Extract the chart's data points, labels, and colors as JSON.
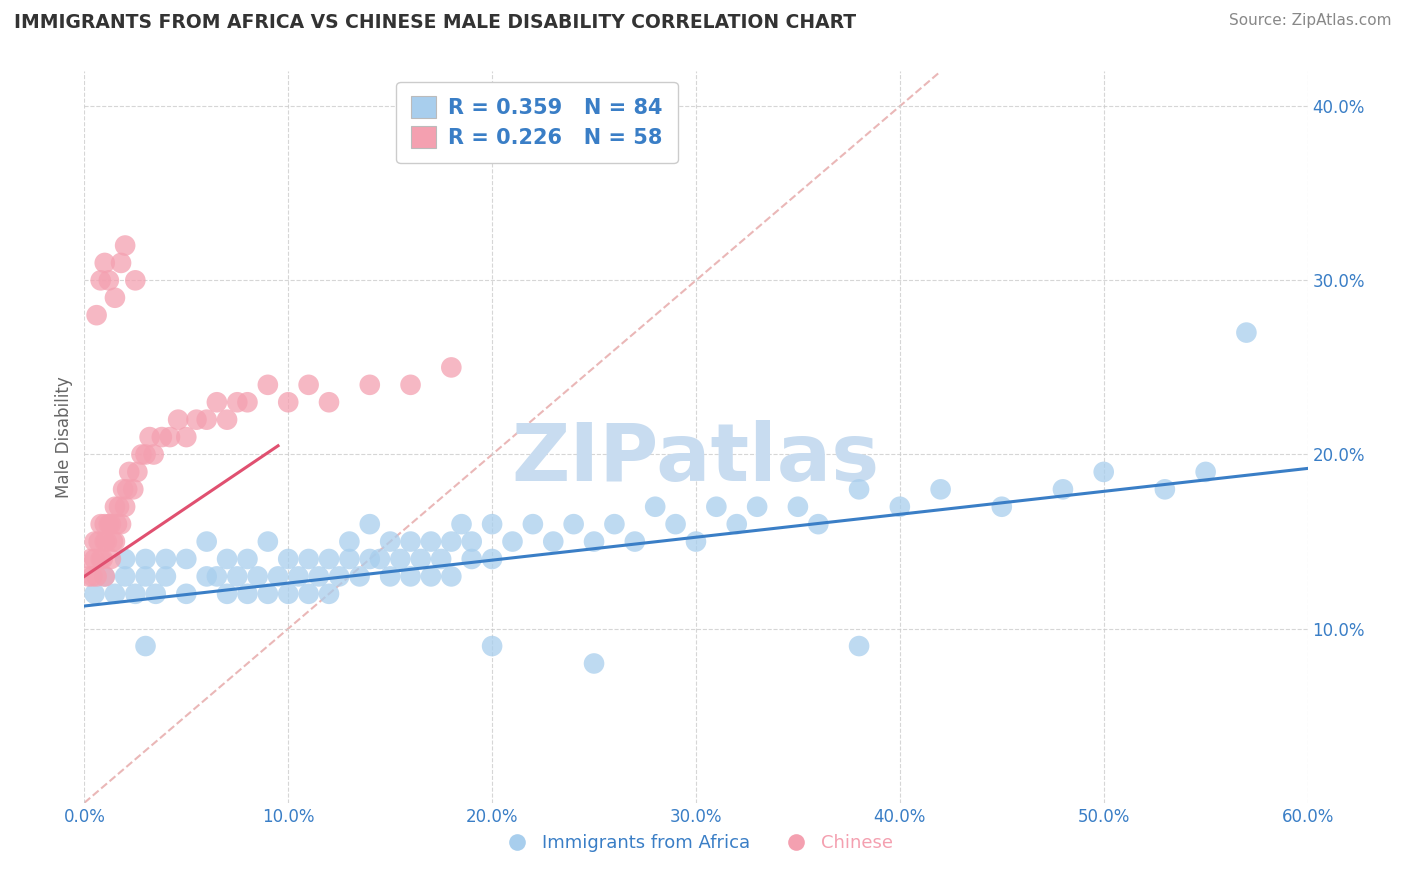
{
  "title": "IMMIGRANTS FROM AFRICA VS CHINESE MALE DISABILITY CORRELATION CHART",
  "source": "Source: ZipAtlas.com",
  "ylabel_label": "Male Disability",
  "xlim": [
    0.0,
    0.6
  ],
  "ylim": [
    0.0,
    0.42
  ],
  "xticks": [
    0.0,
    0.1,
    0.2,
    0.3,
    0.4,
    0.5,
    0.6
  ],
  "yticks": [
    0.1,
    0.2,
    0.3,
    0.4
  ],
  "legend_labels": [
    "Immigrants from Africa",
    "Chinese"
  ],
  "legend_R": [
    "R = 0.359",
    "R = 0.226"
  ],
  "legend_N": [
    "N = 84",
    "N = 58"
  ],
  "blue_color": "#A8CEED",
  "pink_color": "#F4A0B0",
  "blue_line_color": "#3A7EC6",
  "pink_line_color": "#E05070",
  "diagonal_color": "#E8B0B0",
  "watermark_color": "#C8DCF0",
  "background_color": "#FFFFFF",
  "grid_color": "#CCCCCC",
  "title_color": "#333333",
  "source_color": "#888888",
  "axis_label_color": "#666666",
  "tick_color": "#3A7EC6",
  "blue_scatter_x": [
    0.005,
    0.01,
    0.015,
    0.02,
    0.02,
    0.025,
    0.03,
    0.03,
    0.035,
    0.04,
    0.04,
    0.05,
    0.05,
    0.06,
    0.06,
    0.065,
    0.07,
    0.07,
    0.075,
    0.08,
    0.08,
    0.085,
    0.09,
    0.09,
    0.095,
    0.1,
    0.1,
    0.105,
    0.11,
    0.11,
    0.115,
    0.12,
    0.12,
    0.125,
    0.13,
    0.13,
    0.135,
    0.14,
    0.14,
    0.145,
    0.15,
    0.15,
    0.155,
    0.16,
    0.16,
    0.165,
    0.17,
    0.17,
    0.175,
    0.18,
    0.18,
    0.185,
    0.19,
    0.19,
    0.2,
    0.2,
    0.21,
    0.22,
    0.23,
    0.24,
    0.25,
    0.26,
    0.27,
    0.28,
    0.29,
    0.3,
    0.31,
    0.32,
    0.33,
    0.35,
    0.36,
    0.38,
    0.4,
    0.42,
    0.45,
    0.48,
    0.5,
    0.53,
    0.55,
    0.57,
    0.03,
    0.2,
    0.25,
    0.38
  ],
  "blue_scatter_y": [
    0.12,
    0.13,
    0.12,
    0.14,
    0.13,
    0.12,
    0.13,
    0.14,
    0.12,
    0.13,
    0.14,
    0.12,
    0.14,
    0.13,
    0.15,
    0.13,
    0.12,
    0.14,
    0.13,
    0.12,
    0.14,
    0.13,
    0.12,
    0.15,
    0.13,
    0.12,
    0.14,
    0.13,
    0.12,
    0.14,
    0.13,
    0.12,
    0.14,
    0.13,
    0.14,
    0.15,
    0.13,
    0.14,
    0.16,
    0.14,
    0.13,
    0.15,
    0.14,
    0.15,
    0.13,
    0.14,
    0.15,
    0.13,
    0.14,
    0.15,
    0.13,
    0.16,
    0.14,
    0.15,
    0.14,
    0.16,
    0.15,
    0.16,
    0.15,
    0.16,
    0.15,
    0.16,
    0.15,
    0.17,
    0.16,
    0.15,
    0.17,
    0.16,
    0.17,
    0.17,
    0.16,
    0.18,
    0.17,
    0.18,
    0.17,
    0.18,
    0.19,
    0.18,
    0.19,
    0.27,
    0.09,
    0.09,
    0.08,
    0.09
  ],
  "pink_scatter_x": [
    0.002,
    0.003,
    0.004,
    0.005,
    0.005,
    0.006,
    0.007,
    0.008,
    0.008,
    0.009,
    0.01,
    0.01,
    0.01,
    0.011,
    0.012,
    0.013,
    0.013,
    0.014,
    0.015,
    0.015,
    0.016,
    0.017,
    0.018,
    0.019,
    0.02,
    0.021,
    0.022,
    0.024,
    0.026,
    0.028,
    0.03,
    0.032,
    0.034,
    0.038,
    0.042,
    0.046,
    0.05,
    0.055,
    0.06,
    0.065,
    0.07,
    0.075,
    0.08,
    0.09,
    0.1,
    0.11,
    0.12,
    0.14,
    0.16,
    0.18,
    0.006,
    0.008,
    0.01,
    0.012,
    0.015,
    0.018,
    0.02,
    0.025
  ],
  "pink_scatter_y": [
    0.13,
    0.14,
    0.13,
    0.15,
    0.14,
    0.13,
    0.15,
    0.14,
    0.16,
    0.14,
    0.15,
    0.16,
    0.13,
    0.15,
    0.16,
    0.14,
    0.16,
    0.15,
    0.17,
    0.15,
    0.16,
    0.17,
    0.16,
    0.18,
    0.17,
    0.18,
    0.19,
    0.18,
    0.19,
    0.2,
    0.2,
    0.21,
    0.2,
    0.21,
    0.21,
    0.22,
    0.21,
    0.22,
    0.22,
    0.23,
    0.22,
    0.23,
    0.23,
    0.24,
    0.23,
    0.24,
    0.23,
    0.24,
    0.24,
    0.25,
    0.28,
    0.3,
    0.31,
    0.3,
    0.29,
    0.31,
    0.32,
    0.3
  ],
  "blue_line_x": [
    0.0,
    0.6
  ],
  "blue_line_y": [
    0.113,
    0.192
  ],
  "pink_line_x": [
    0.0,
    0.095
  ],
  "pink_line_y": [
    0.13,
    0.205
  ]
}
